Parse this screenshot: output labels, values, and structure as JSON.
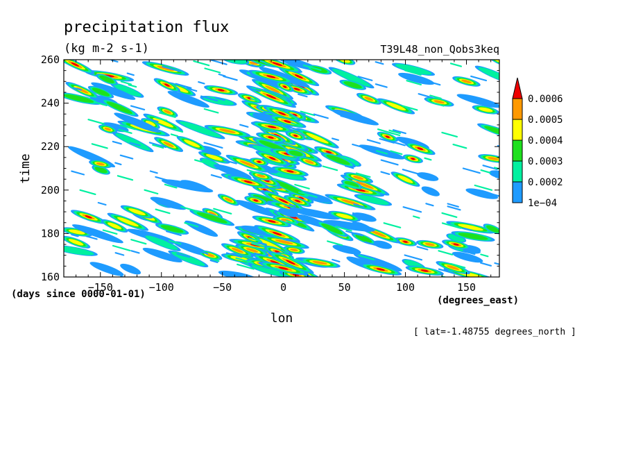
{
  "title": "precipitation flux",
  "units": "(kg m-2 s-1)",
  "experiment": "T39L48_non_Qobs3keq",
  "y_label": "time",
  "x_label": "lon",
  "y_units_note": "(days since 0000-01-01)",
  "x_units_note": "(degrees_east)",
  "slice_note": "[ lat=-1.48755 degrees_north ]",
  "colors": {
    "level_1": "#1e9bff",
    "level_2": "#00f0a0",
    "level_3": "#1ee01e",
    "level_4": "#ffff00",
    "level_5": "#ff9900",
    "level_6": "#ee0000"
  },
  "chart_data": {
    "type": "heatmap",
    "title": "precipitation flux",
    "xlabel": "lon",
    "ylabel": "time",
    "xlim": [
      -180,
      177
    ],
    "ylim": [
      160,
      260
    ],
    "x_ticks": [
      -150,
      -100,
      -50,
      0,
      50,
      100,
      150
    ],
    "y_ticks": [
      160,
      180,
      200,
      220,
      240,
      260
    ],
    "colorbar": {
      "levels": [
        "1e-04",
        "0.0002",
        "0.0003",
        "0.0004",
        "0.0005",
        "0.0006"
      ],
      "colors": [
        "#1e9bff",
        "#00f0a0",
        "#1ee01e",
        "#ffff00",
        "#ff9900",
        "#ee0000"
      ],
      "extend": "max"
    },
    "features": [
      {
        "lon": 0,
        "time": 195,
        "level": 6
      },
      {
        "lon": 0,
        "time": 164,
        "level": 6
      },
      {
        "lon": -5,
        "time": 258,
        "level": 6
      },
      {
        "lon": -10,
        "time": 243,
        "level": 6
      },
      {
        "lon": -20,
        "time": 213,
        "level": 6
      },
      {
        "lon": 10,
        "time": 225,
        "level": 6
      },
      {
        "lon": -95,
        "time": 236,
        "level": 5
      },
      {
        "lon": -150,
        "time": 212,
        "level": 5
      },
      {
        "lon": -60,
        "time": 170,
        "level": 5
      },
      {
        "lon": 70,
        "time": 242,
        "level": 5
      },
      {
        "lon": 120,
        "time": 175,
        "level": 5
      },
      {
        "lon": 150,
        "time": 250,
        "level": 5
      },
      {
        "lon": -170,
        "time": 176,
        "level": 4
      },
      {
        "lon": 100,
        "time": 205,
        "level": 4
      },
      {
        "lon": 50,
        "time": 188,
        "level": 4
      },
      {
        "lon": -120,
        "time": 190,
        "level": 4
      }
    ]
  }
}
